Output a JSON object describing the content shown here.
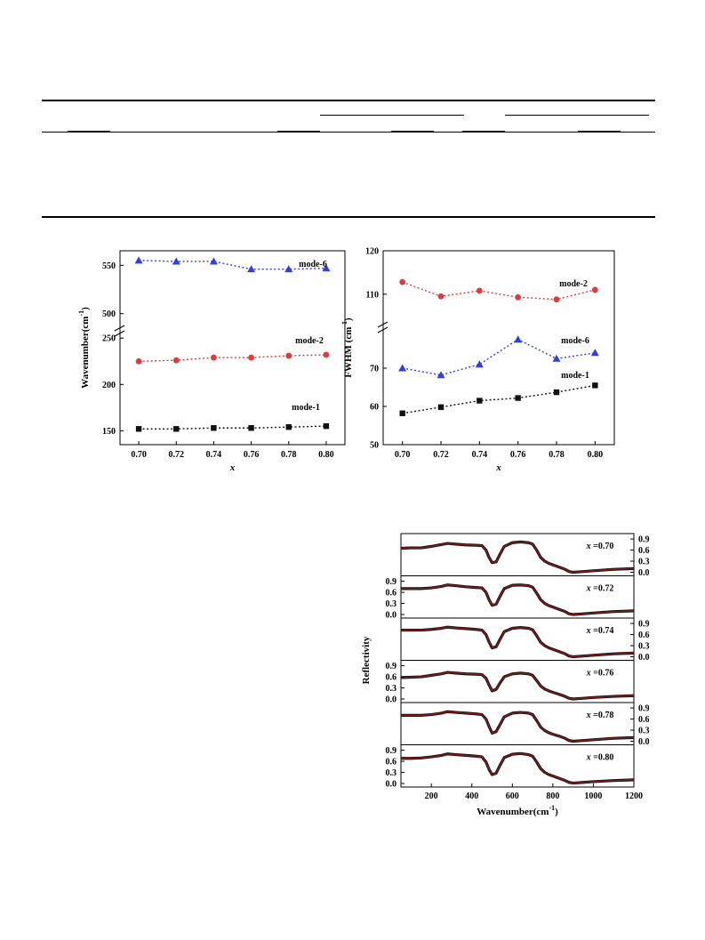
{
  "colors": {
    "mode1": "#111111",
    "mode2": "#e03a3a",
    "mode6": "#2f3fe0",
    "spectrum_data": "#111111",
    "spectrum_fit": "#8b1a1a"
  },
  "chart_data": [
    {
      "type": "scatter",
      "lines": "dotted",
      "broken_y_axis": true,
      "xlabel": "x",
      "ylabel": "Wavenumber(cm⁻¹)",
      "x": [
        0.7,
        0.72,
        0.74,
        0.76,
        0.78,
        0.8
      ],
      "x_ticks": [
        "0.70",
        "0.72",
        "0.74",
        "0.76",
        "0.78",
        "0.80"
      ],
      "y_ranges": [
        [
          135,
          255
        ],
        [
          485,
          565
        ]
      ],
      "y_ticks_lower": [
        "150",
        "200",
        "250"
      ],
      "y_ticks_upper": [
        "500",
        "550"
      ],
      "series": [
        {
          "name": "mode-6",
          "marker": "triangle",
          "values": [
            555,
            554,
            554,
            546,
            546,
            547
          ]
        },
        {
          "name": "mode-2",
          "marker": "circle",
          "values": [
            225,
            226,
            229,
            229,
            231,
            232
          ]
        },
        {
          "name": "mode-1",
          "marker": "square",
          "values": [
            152,
            152,
            153,
            153,
            154,
            155
          ]
        }
      ]
    },
    {
      "type": "scatter",
      "lines": "dotted",
      "broken_y_axis": true,
      "xlabel": "x",
      "ylabel": "FWHM (cm⁻¹)",
      "x": [
        0.7,
        0.72,
        0.74,
        0.76,
        0.78,
        0.8
      ],
      "x_ticks": [
        "0.70",
        "0.72",
        "0.74",
        "0.76",
        "0.78",
        "0.80"
      ],
      "y_ranges": [
        [
          50,
          80
        ],
        [
          103,
          120
        ]
      ],
      "y_ticks_lower": [
        "50",
        "60",
        "70"
      ],
      "y_ticks_upper": [
        "110",
        "120"
      ],
      "series": [
        {
          "name": "mode-2",
          "marker": "circle",
          "values": [
            112.8,
            109.5,
            110.8,
            109.3,
            108.8,
            111.0
          ]
        },
        {
          "name": "mode-6",
          "marker": "triangle",
          "values": [
            70,
            68.2,
            71,
            77.5,
            72.5,
            74
          ]
        },
        {
          "name": "mode-1",
          "marker": "square",
          "values": [
            58.2,
            59.8,
            61.5,
            62.2,
            63.7,
            65.5
          ]
        }
      ]
    },
    {
      "type": "line",
      "stacked_panels": true,
      "xlabel": "Wavenumber(cm⁻¹)",
      "ylabel": "Reflectivity",
      "xlim": [
        50,
        1200
      ],
      "x_ticks": [
        "200",
        "400",
        "600",
        "800",
        "1000",
        "1200"
      ],
      "y_ticks": [
        "0.0",
        "0.3",
        "0.6",
        "0.9"
      ],
      "spectrum_x": [
        50,
        100,
        150,
        200,
        250,
        280,
        320,
        370,
        420,
        450,
        470,
        485,
        500,
        520,
        540,
        560,
        600,
        640,
        680,
        700,
        720,
        740,
        760,
        780,
        800,
        830,
        860,
        880,
        900,
        950,
        1000,
        1100,
        1200
      ],
      "panels": [
        {
          "label": "x =0.70",
          "values": [
            0.65,
            0.66,
            0.66,
            0.7,
            0.75,
            0.78,
            0.76,
            0.74,
            0.73,
            0.72,
            0.6,
            0.4,
            0.26,
            0.28,
            0.5,
            0.7,
            0.8,
            0.82,
            0.8,
            0.76,
            0.6,
            0.4,
            0.3,
            0.24,
            0.2,
            0.14,
            0.08,
            0.02,
            0.0,
            0.02,
            0.04,
            0.08,
            0.1
          ]
        },
        {
          "label": "x =0.72",
          "values": [
            0.7,
            0.7,
            0.7,
            0.72,
            0.76,
            0.8,
            0.78,
            0.75,
            0.73,
            0.72,
            0.6,
            0.4,
            0.25,
            0.28,
            0.5,
            0.7,
            0.79,
            0.8,
            0.78,
            0.74,
            0.58,
            0.4,
            0.3,
            0.24,
            0.2,
            0.14,
            0.08,
            0.02,
            0.0,
            0.02,
            0.04,
            0.08,
            0.1
          ]
        },
        {
          "label": "x =0.74",
          "values": [
            0.72,
            0.72,
            0.72,
            0.74,
            0.77,
            0.8,
            0.78,
            0.76,
            0.74,
            0.72,
            0.6,
            0.4,
            0.24,
            0.27,
            0.48,
            0.68,
            0.77,
            0.79,
            0.77,
            0.73,
            0.57,
            0.39,
            0.3,
            0.24,
            0.2,
            0.14,
            0.08,
            0.02,
            0.0,
            0.02,
            0.04,
            0.08,
            0.1
          ]
        },
        {
          "label": "x =0.76",
          "values": [
            0.58,
            0.59,
            0.6,
            0.64,
            0.68,
            0.72,
            0.7,
            0.68,
            0.67,
            0.66,
            0.56,
            0.38,
            0.22,
            0.26,
            0.44,
            0.6,
            0.68,
            0.7,
            0.68,
            0.64,
            0.5,
            0.35,
            0.27,
            0.22,
            0.18,
            0.13,
            0.07,
            0.02,
            0.0,
            0.02,
            0.04,
            0.07,
            0.09
          ]
        },
        {
          "label": "x =0.78",
          "values": [
            0.7,
            0.7,
            0.7,
            0.72,
            0.76,
            0.8,
            0.78,
            0.76,
            0.74,
            0.72,
            0.6,
            0.4,
            0.22,
            0.26,
            0.46,
            0.66,
            0.76,
            0.78,
            0.76,
            0.72,
            0.56,
            0.38,
            0.29,
            0.23,
            0.19,
            0.14,
            0.08,
            0.02,
            0.0,
            0.02,
            0.04,
            0.08,
            0.1
          ]
        },
        {
          "label": "x =0.80",
          "values": [
            0.68,
            0.68,
            0.69,
            0.72,
            0.76,
            0.8,
            0.78,
            0.76,
            0.74,
            0.72,
            0.58,
            0.38,
            0.24,
            0.28,
            0.5,
            0.7,
            0.79,
            0.81,
            0.78,
            0.74,
            0.58,
            0.4,
            0.3,
            0.24,
            0.2,
            0.14,
            0.08,
            0.03,
            0.01,
            0.03,
            0.05,
            0.08,
            0.1
          ]
        }
      ]
    }
  ]
}
